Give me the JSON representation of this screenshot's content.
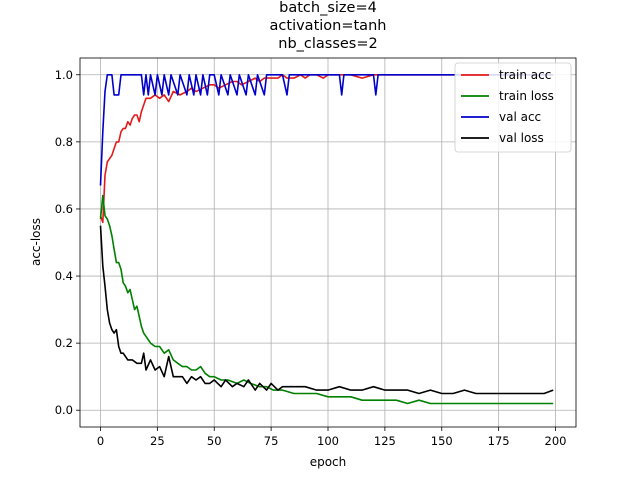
{
  "chart_data": {
    "type": "line",
    "title_lines": [
      "batch_size=4",
      "activation=tanh",
      "nb_classes=2"
    ],
    "xlabel": "epoch",
    "ylabel": "acc-loss",
    "xlim": [
      -9,
      209
    ],
    "ylim": [
      -0.05,
      1.05
    ],
    "xticks": [
      0,
      25,
      50,
      75,
      100,
      125,
      150,
      175,
      200
    ],
    "yticks": [
      0.0,
      0.2,
      0.4,
      0.6,
      0.8,
      1.0
    ],
    "ytick_labels": [
      "0.0",
      "0.2",
      "0.4",
      "0.6",
      "0.8",
      "1.0"
    ],
    "grid": true,
    "legend_position": "top-right",
    "series": [
      {
        "name": "train acc",
        "color": "#e31a1c",
        "points": [
          [
            0,
            0.58
          ],
          [
            1,
            0.56
          ],
          [
            2,
            0.7
          ],
          [
            3,
            0.74
          ],
          [
            4,
            0.75
          ],
          [
            5,
            0.76
          ],
          [
            6,
            0.78
          ],
          [
            7,
            0.8
          ],
          [
            8,
            0.8
          ],
          [
            9,
            0.83
          ],
          [
            10,
            0.84
          ],
          [
            11,
            0.84
          ],
          [
            12,
            0.86
          ],
          [
            13,
            0.85
          ],
          [
            14,
            0.87
          ],
          [
            15,
            0.88
          ],
          [
            16,
            0.88
          ],
          [
            17,
            0.86
          ],
          [
            18,
            0.89
          ],
          [
            19,
            0.91
          ],
          [
            20,
            0.93
          ],
          [
            22,
            0.93
          ],
          [
            24,
            0.94
          ],
          [
            26,
            0.93
          ],
          [
            28,
            0.94
          ],
          [
            30,
            0.92
          ],
          [
            32,
            0.95
          ],
          [
            35,
            0.94
          ],
          [
            38,
            0.95
          ],
          [
            40,
            0.96
          ],
          [
            42,
            0.95
          ],
          [
            45,
            0.96
          ],
          [
            48,
            0.97
          ],
          [
            50,
            0.97
          ],
          [
            52,
            0.96
          ],
          [
            55,
            0.97
          ],
          [
            58,
            0.98
          ],
          [
            60,
            0.98
          ],
          [
            62,
            0.97
          ],
          [
            65,
            0.98
          ],
          [
            68,
            0.99
          ],
          [
            70,
            0.98
          ],
          [
            72,
            0.99
          ],
          [
            75,
            0.99
          ],
          [
            78,
            0.99
          ],
          [
            80,
            1.0
          ],
          [
            82,
            0.99
          ],
          [
            85,
            0.99
          ],
          [
            88,
            1.0
          ],
          [
            90,
            0.99
          ],
          [
            92,
            1.0
          ],
          [
            95,
            1.0
          ],
          [
            98,
            0.99
          ],
          [
            100,
            1.0
          ],
          [
            105,
            1.0
          ],
          [
            110,
            1.0
          ],
          [
            115,
            0.99
          ],
          [
            120,
            1.0
          ],
          [
            130,
            1.0
          ],
          [
            140,
            1.0
          ],
          [
            150,
            1.0
          ],
          [
            160,
            1.0
          ],
          [
            170,
            1.0
          ],
          [
            180,
            1.0
          ],
          [
            190,
            1.0
          ],
          [
            199,
            1.0
          ]
        ]
      },
      {
        "name": "train loss",
        "color": "#008000",
        "points": [
          [
            0,
            0.57
          ],
          [
            1,
            0.64
          ],
          [
            2,
            0.58
          ],
          [
            3,
            0.57
          ],
          [
            4,
            0.55
          ],
          [
            5,
            0.52
          ],
          [
            6,
            0.48
          ],
          [
            7,
            0.44
          ],
          [
            8,
            0.44
          ],
          [
            9,
            0.42
          ],
          [
            10,
            0.38
          ],
          [
            11,
            0.37
          ],
          [
            12,
            0.35
          ],
          [
            13,
            0.36
          ],
          [
            14,
            0.33
          ],
          [
            15,
            0.3
          ],
          [
            16,
            0.31
          ],
          [
            17,
            0.28
          ],
          [
            18,
            0.25
          ],
          [
            19,
            0.23
          ],
          [
            20,
            0.22
          ],
          [
            22,
            0.2
          ],
          [
            24,
            0.19
          ],
          [
            26,
            0.19
          ],
          [
            28,
            0.17
          ],
          [
            30,
            0.18
          ],
          [
            32,
            0.15
          ],
          [
            34,
            0.14
          ],
          [
            36,
            0.13
          ],
          [
            38,
            0.13
          ],
          [
            40,
            0.12
          ],
          [
            42,
            0.12
          ],
          [
            44,
            0.13
          ],
          [
            46,
            0.11
          ],
          [
            48,
            0.1
          ],
          [
            50,
            0.1
          ],
          [
            53,
            0.09
          ],
          [
            56,
            0.09
          ],
          [
            60,
            0.08
          ],
          [
            63,
            0.09
          ],
          [
            66,
            0.08
          ],
          [
            70,
            0.07
          ],
          [
            73,
            0.07
          ],
          [
            76,
            0.06
          ],
          [
            80,
            0.06
          ],
          [
            85,
            0.05
          ],
          [
            90,
            0.05
          ],
          [
            95,
            0.05
          ],
          [
            100,
            0.04
          ],
          [
            105,
            0.04
          ],
          [
            110,
            0.04
          ],
          [
            115,
            0.03
          ],
          [
            120,
            0.03
          ],
          [
            125,
            0.03
          ],
          [
            130,
            0.03
          ],
          [
            135,
            0.02
          ],
          [
            140,
            0.03
          ],
          [
            145,
            0.02
          ],
          [
            150,
            0.02
          ],
          [
            155,
            0.02
          ],
          [
            160,
            0.02
          ],
          [
            165,
            0.02
          ],
          [
            170,
            0.02
          ],
          [
            175,
            0.02
          ],
          [
            180,
            0.02
          ],
          [
            185,
            0.02
          ],
          [
            190,
            0.02
          ],
          [
            195,
            0.02
          ],
          [
            199,
            0.02
          ]
        ]
      },
      {
        "name": "val acc",
        "color": "#0000cc",
        "points": [
          [
            0,
            0.67
          ],
          [
            1,
            0.83
          ],
          [
            2,
            0.95
          ],
          [
            3,
            1.0
          ],
          [
            5,
            1.0
          ],
          [
            6,
            0.94
          ],
          [
            8,
            0.94
          ],
          [
            9,
            1.0
          ],
          [
            12,
            1.0
          ],
          [
            15,
            1.0
          ],
          [
            18,
            1.0
          ],
          [
            19,
            0.94
          ],
          [
            20,
            1.0
          ],
          [
            21,
            0.94
          ],
          [
            22,
            1.0
          ],
          [
            24,
            0.94
          ],
          [
            25,
            1.0
          ],
          [
            27,
            0.94
          ],
          [
            28,
            1.0
          ],
          [
            30,
            0.94
          ],
          [
            31,
            1.0
          ],
          [
            34,
            0.94
          ],
          [
            35,
            1.0
          ],
          [
            38,
            0.94
          ],
          [
            39,
            1.0
          ],
          [
            41,
            0.94
          ],
          [
            42,
            1.0
          ],
          [
            44,
            0.94
          ],
          [
            45,
            1.0
          ],
          [
            47,
            0.94
          ],
          [
            48,
            1.0
          ],
          [
            50,
            1.0
          ],
          [
            52,
            0.94
          ],
          [
            53,
            1.0
          ],
          [
            56,
            0.94
          ],
          [
            57,
            1.0
          ],
          [
            60,
            0.94
          ],
          [
            61,
            1.0
          ],
          [
            64,
            0.94
          ],
          [
            65,
            1.0
          ],
          [
            68,
            0.94
          ],
          [
            69,
            1.0
          ],
          [
            72,
            0.94
          ],
          [
            73,
            1.0
          ],
          [
            80,
            1.0
          ],
          [
            82,
            0.94
          ],
          [
            83,
            1.0
          ],
          [
            90,
            1.0
          ],
          [
            105,
            1.0
          ],
          [
            106,
            0.94
          ],
          [
            107,
            1.0
          ],
          [
            120,
            1.0
          ],
          [
            121,
            0.94
          ],
          [
            122,
            1.0
          ],
          [
            140,
            1.0
          ],
          [
            160,
            1.0
          ],
          [
            180,
            1.0
          ],
          [
            199,
            1.0
          ]
        ]
      },
      {
        "name": "val loss",
        "color": "#000000",
        "points": [
          [
            0,
            0.55
          ],
          [
            1,
            0.43
          ],
          [
            2,
            0.37
          ],
          [
            3,
            0.3
          ],
          [
            4,
            0.26
          ],
          [
            5,
            0.24
          ],
          [
            6,
            0.23
          ],
          [
            7,
            0.24
          ],
          [
            8,
            0.19
          ],
          [
            9,
            0.17
          ],
          [
            10,
            0.17
          ],
          [
            12,
            0.15
          ],
          [
            14,
            0.15
          ],
          [
            16,
            0.14
          ],
          [
            18,
            0.14
          ],
          [
            19,
            0.17
          ],
          [
            20,
            0.12
          ],
          [
            22,
            0.15
          ],
          [
            24,
            0.12
          ],
          [
            26,
            0.13
          ],
          [
            28,
            0.1
          ],
          [
            30,
            0.16
          ],
          [
            32,
            0.1
          ],
          [
            34,
            0.1
          ],
          [
            36,
            0.1
          ],
          [
            38,
            0.08
          ],
          [
            40,
            0.1
          ],
          [
            42,
            0.09
          ],
          [
            44,
            0.1
          ],
          [
            46,
            0.08
          ],
          [
            48,
            0.08
          ],
          [
            50,
            0.09
          ],
          [
            53,
            0.07
          ],
          [
            55,
            0.09
          ],
          [
            58,
            0.07
          ],
          [
            60,
            0.08
          ],
          [
            63,
            0.07
          ],
          [
            65,
            0.09
          ],
          [
            68,
            0.06
          ],
          [
            70,
            0.08
          ],
          [
            73,
            0.06
          ],
          [
            75,
            0.08
          ],
          [
            78,
            0.06
          ],
          [
            80,
            0.07
          ],
          [
            85,
            0.07
          ],
          [
            90,
            0.07
          ],
          [
            95,
            0.06
          ],
          [
            100,
            0.06
          ],
          [
            105,
            0.07
          ],
          [
            110,
            0.06
          ],
          [
            115,
            0.06
          ],
          [
            120,
            0.07
          ],
          [
            125,
            0.06
          ],
          [
            130,
            0.06
          ],
          [
            135,
            0.06
          ],
          [
            140,
            0.05
          ],
          [
            145,
            0.06
          ],
          [
            150,
            0.05
          ],
          [
            155,
            0.05
          ],
          [
            160,
            0.06
          ],
          [
            165,
            0.05
          ],
          [
            170,
            0.05
          ],
          [
            175,
            0.05
          ],
          [
            180,
            0.05
          ],
          [
            185,
            0.05
          ],
          [
            190,
            0.05
          ],
          [
            195,
            0.05
          ],
          [
            199,
            0.06
          ]
        ]
      }
    ]
  }
}
